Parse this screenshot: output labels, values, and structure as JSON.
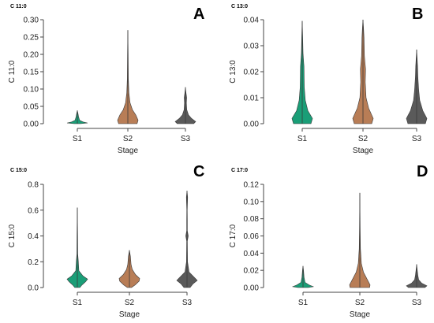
{
  "chart_data": [
    {
      "type": "violin",
      "panel_letter": "A",
      "title": "C 11:0",
      "xlabel": "Stage",
      "ylabel": "C 11:0",
      "categories": [
        "S1",
        "S2",
        "S3"
      ],
      "ylim": [
        0,
        0.3
      ],
      "yticks": [
        "0.00",
        "0.05",
        "0.10",
        "0.15",
        "0.20",
        "0.25",
        "0.30"
      ],
      "violins": [
        {
          "category": "S1",
          "min": 0.0,
          "max": 0.038,
          "color": "#1a9e77",
          "profile": [
            [
              0,
              0.3
            ],
            [
              0.002,
              1.0
            ],
            [
              0.005,
              0.55
            ],
            [
              0.01,
              0.22
            ],
            [
              0.02,
              0.12
            ],
            [
              0.03,
              0.06
            ],
            [
              0.038,
              0.0
            ]
          ]
        },
        {
          "category": "S2",
          "min": 0.0,
          "max": 0.27,
          "color": "#b87d56",
          "profile": [
            [
              0,
              0.9
            ],
            [
              0.01,
              1.0
            ],
            [
              0.025,
              0.78
            ],
            [
              0.04,
              0.45
            ],
            [
              0.06,
              0.22
            ],
            [
              0.09,
              0.1
            ],
            [
              0.13,
              0.05
            ],
            [
              0.2,
              0.03
            ],
            [
              0.27,
              0.0
            ]
          ]
        },
        {
          "category": "S3",
          "min": 0.0,
          "max": 0.105,
          "color": "#5a5a5a",
          "profile": [
            [
              0,
              0.8
            ],
            [
              0.006,
              1.0
            ],
            [
              0.015,
              0.6
            ],
            [
              0.025,
              0.3
            ],
            [
              0.04,
              0.13
            ],
            [
              0.06,
              0.09
            ],
            [
              0.075,
              0.12
            ],
            [
              0.09,
              0.05
            ],
            [
              0.105,
              0.0
            ]
          ]
        }
      ]
    },
    {
      "type": "violin",
      "panel_letter": "B",
      "title": "C 13:0",
      "xlabel": "Stage",
      "ylabel": "C 13:0",
      "categories": [
        "S1",
        "S2",
        "S3"
      ],
      "ylim": [
        0,
        0.04
      ],
      "yticks": [
        "0.00",
        "0.01",
        "0.02",
        "0.03",
        "0.04"
      ],
      "violins": [
        {
          "category": "S1",
          "min": 0.0,
          "max": 0.0395,
          "color": "#1a9e77",
          "profile": [
            [
              0,
              0.85
            ],
            [
              0.002,
              1.0
            ],
            [
              0.005,
              0.55
            ],
            [
              0.009,
              0.3
            ],
            [
              0.014,
              0.2
            ],
            [
              0.022,
              0.17
            ],
            [
              0.027,
              0.08
            ],
            [
              0.034,
              0.04
            ],
            [
              0.0395,
              0.0
            ]
          ]
        },
        {
          "category": "S2",
          "min": 0.0,
          "max": 0.04,
          "color": "#b87d56",
          "profile": [
            [
              0,
              0.85
            ],
            [
              0.002,
              1.0
            ],
            [
              0.006,
              0.55
            ],
            [
              0.01,
              0.3
            ],
            [
              0.016,
              0.22
            ],
            [
              0.021,
              0.25
            ],
            [
              0.026,
              0.14
            ],
            [
              0.033,
              0.1
            ],
            [
              0.037,
              0.05
            ],
            [
              0.04,
              0.0
            ]
          ]
        },
        {
          "category": "S3",
          "min": 0.0,
          "max": 0.0285,
          "color": "#5a5a5a",
          "profile": [
            [
              0,
              0.85
            ],
            [
              0.002,
              1.0
            ],
            [
              0.005,
              0.6
            ],
            [
              0.009,
              0.3
            ],
            [
              0.013,
              0.2
            ],
            [
              0.018,
              0.12
            ],
            [
              0.022,
              0.09
            ],
            [
              0.0285,
              0.0
            ]
          ]
        }
      ]
    },
    {
      "type": "violin",
      "panel_letter": "C",
      "title": "C 15:0",
      "xlabel": "Stage",
      "ylabel": "C 15:0",
      "categories": [
        "S1",
        "S2",
        "S3"
      ],
      "ylim": [
        0,
        0.8
      ],
      "yticks": [
        "0.0",
        "0.2",
        "0.4",
        "0.6",
        "0.8"
      ],
      "violins": [
        {
          "category": "S1",
          "min": 0.0,
          "max": 0.62,
          "color": "#1a9e77",
          "profile": [
            [
              0,
              0.25
            ],
            [
              0.02,
              0.45
            ],
            [
              0.045,
              0.8
            ],
            [
              0.065,
              1.0
            ],
            [
              0.09,
              0.55
            ],
            [
              0.13,
              0.15
            ],
            [
              0.2,
              0.1
            ],
            [
              0.26,
              0.04
            ],
            [
              0.4,
              0.03
            ],
            [
              0.62,
              0.0
            ]
          ]
        },
        {
          "category": "S2",
          "min": 0.0,
          "max": 0.29,
          "color": "#b87d56",
          "profile": [
            [
              0,
              0.2
            ],
            [
              0.02,
              0.55
            ],
            [
              0.05,
              0.95
            ],
            [
              0.07,
              1.0
            ],
            [
              0.1,
              0.6
            ],
            [
              0.14,
              0.28
            ],
            [
              0.18,
              0.16
            ],
            [
              0.24,
              0.1
            ],
            [
              0.29,
              0.0
            ]
          ]
        },
        {
          "category": "S3",
          "min": 0.0,
          "max": 0.75,
          "color": "#5a5a5a",
          "profile": [
            [
              0,
              0.3
            ],
            [
              0.03,
              0.6
            ],
            [
              0.055,
              1.0
            ],
            [
              0.08,
              0.7
            ],
            [
              0.12,
              0.2
            ],
            [
              0.2,
              0.05
            ],
            [
              0.36,
              0.03
            ],
            [
              0.4,
              0.12
            ],
            [
              0.44,
              0.03
            ],
            [
              0.52,
              0.03
            ],
            [
              0.6,
              0.02
            ],
            [
              0.7,
              0.06
            ],
            [
              0.75,
              0.0
            ]
          ]
        }
      ]
    },
    {
      "type": "violin",
      "panel_letter": "D",
      "title": "C 17:0",
      "xlabel": "Stage",
      "ylabel": "C 17:0",
      "categories": [
        "S1",
        "S2",
        "S3"
      ],
      "ylim": [
        0,
        0.12
      ],
      "yticks": [
        "0.00",
        "0.02",
        "0.04",
        "0.06",
        "0.08",
        "0.10",
        "0.12"
      ],
      "violins": [
        {
          "category": "S1",
          "min": 0.0,
          "max": 0.025,
          "color": "#1a9e77",
          "profile": [
            [
              0,
              0.5
            ],
            [
              0.001,
              1.0
            ],
            [
              0.003,
              0.6
            ],
            [
              0.006,
              0.2
            ],
            [
              0.012,
              0.1
            ],
            [
              0.02,
              0.05
            ],
            [
              0.025,
              0.0
            ]
          ]
        },
        {
          "category": "S2",
          "min": 0.0,
          "max": 0.11,
          "color": "#b87d56",
          "profile": [
            [
              0,
              0.95
            ],
            [
              0.003,
              1.0
            ],
            [
              0.01,
              0.7
            ],
            [
              0.018,
              0.35
            ],
            [
              0.028,
              0.15
            ],
            [
              0.045,
              0.06
            ],
            [
              0.07,
              0.03
            ],
            [
              0.11,
              0.0
            ]
          ]
        },
        {
          "category": "S3",
          "min": 0.0,
          "max": 0.027,
          "color": "#5a5a5a",
          "profile": [
            [
              0,
              0.8
            ],
            [
              0.002,
              1.0
            ],
            [
              0.005,
              0.5
            ],
            [
              0.009,
              0.2
            ],
            [
              0.014,
              0.12
            ],
            [
              0.02,
              0.06
            ],
            [
              0.027,
              0.0
            ]
          ]
        }
      ]
    }
  ]
}
